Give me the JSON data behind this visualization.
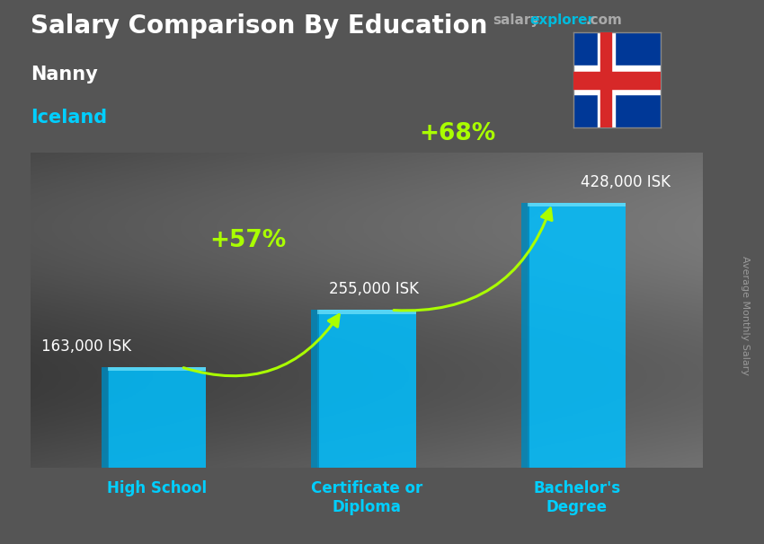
{
  "title": "Salary Comparison By Education",
  "subtitle1": "Nanny",
  "subtitle2": "Iceland",
  "categories": [
    "High School",
    "Certificate or\nDiploma",
    "Bachelor's\nDegree"
  ],
  "values": [
    163000,
    255000,
    428000
  ],
  "value_labels": [
    "163,000 ISK",
    "255,000 ISK",
    "428,000 ISK"
  ],
  "pct_labels": [
    "+57%",
    "+68%"
  ],
  "bar_color": "#00bfff",
  "bar_alpha": 0.85,
  "ylabel": "Average Monthly Salary",
  "title_color": "#ffffff",
  "subtitle1_color": "#ffffff",
  "subtitle2_color": "#00cfff",
  "value_label_color": "#ffffff",
  "pct_color": "#aaff00",
  "xlabel_color": "#00cfff",
  "site_salary_color": "#aaaaaa",
  "site_explorer_color": "#00bbdd",
  "site_com_color": "#aaaaaa",
  "ylabel_color": "#999999",
  "bg_color": "#555555",
  "max_val": 510000,
  "bar_positions": [
    0.2,
    0.5,
    0.8
  ],
  "bar_width": 0.14
}
